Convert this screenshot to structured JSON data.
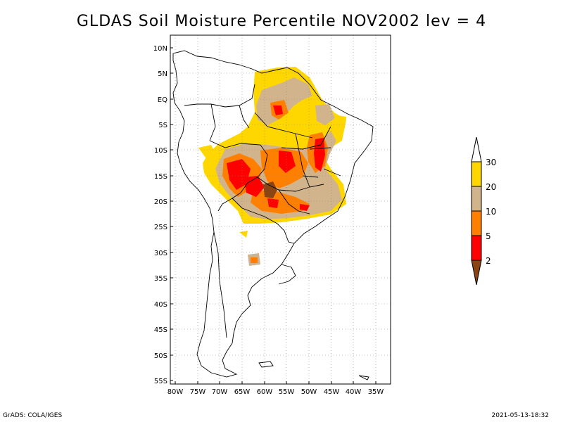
{
  "title": "GLDAS Soil Moisture Percentile NOV2002 lev = 4",
  "map": {
    "lat_labels": [
      "10N",
      "5N",
      "EQ",
      "5S",
      "10S",
      "15S",
      "20S",
      "25S",
      "30S",
      "35S",
      "40S",
      "45S",
      "50S",
      "55S"
    ],
    "lon_labels": [
      "80W",
      "75W",
      "70W",
      "65W",
      "60W",
      "55W",
      "50W",
      "45W",
      "40W",
      "35W"
    ],
    "extent": {
      "lon_min": -81,
      "lon_max": -33,
      "lat_min": -56,
      "lat_max": 11
    },
    "grid": "dotted"
  },
  "colorbar": {
    "levels": [
      "2",
      "5",
      "10",
      "20",
      "30"
    ],
    "colors": {
      "below_2": "#8b4513",
      "2_5": "#ff0000",
      "5_10": "#ff8000",
      "10_20": "#d2b48c",
      "20_30": "#ffd700",
      "above_30": "#ffffff"
    }
  },
  "footer": {
    "left": "GrADS: COLA/IGES",
    "right": "2021-05-13-18:32"
  }
}
